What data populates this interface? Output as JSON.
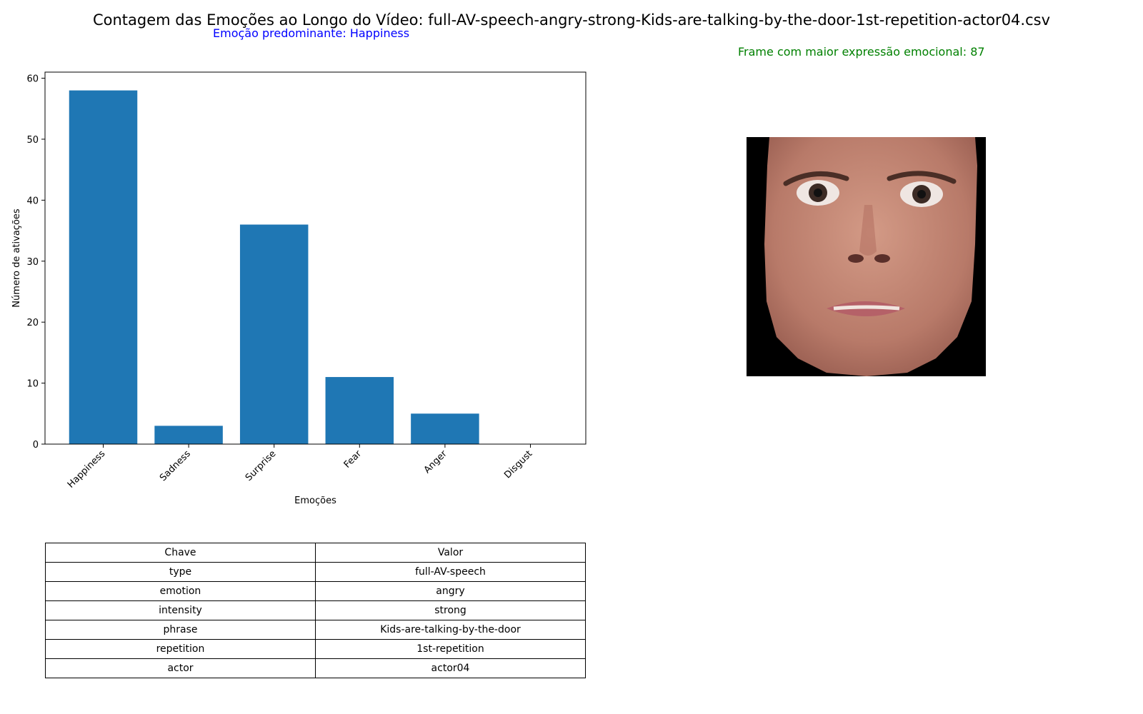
{
  "figure": {
    "title": "Contagem das Emoções ao Longo do Vídeo: full-AV-speech-angry-strong-Kids-are-talking-by-the-door-1st-repetition-actor04.csv",
    "predominant_text": "Emoção predominante: Happiness",
    "max_frame_text": "Frame com maior expressão emocional: 87",
    "predominant_color": "#0000ff",
    "max_frame_color": "#008000"
  },
  "chart_data": {
    "type": "bar",
    "categories": [
      "Happiness",
      "Sadness",
      "Surprise",
      "Fear",
      "Anger",
      "Disgust"
    ],
    "values": [
      58,
      3,
      36,
      11,
      5,
      0
    ],
    "xlabel": "Emoções",
    "ylabel": "Número de ativações",
    "ylim": [
      0,
      61
    ],
    "yticks": [
      0,
      10,
      20,
      30,
      40,
      50,
      60
    ],
    "bar_color": "#1f77b4",
    "grid": false
  },
  "table": {
    "headers": [
      "Chave",
      "Valor"
    ],
    "rows": [
      [
        "type",
        "full-AV-speech"
      ],
      [
        "emotion",
        "angry"
      ],
      [
        "intensity",
        "strong"
      ],
      [
        "phrase",
        "Kids-are-talking-by-the-door"
      ],
      [
        "repetition",
        "1st-repetition"
      ],
      [
        "actor",
        "actor04"
      ]
    ]
  }
}
